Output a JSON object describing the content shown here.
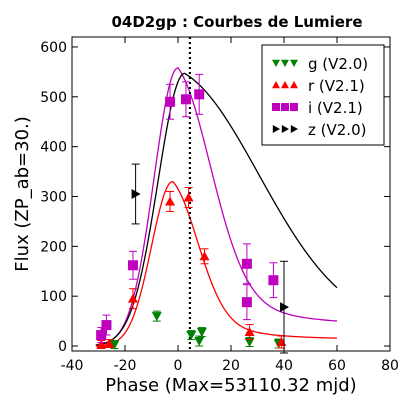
{
  "chart_data": {
    "type": "scatter",
    "title": "04D2gp : Courbes de Lumiere",
    "xlabel": "Phase (Max=53110.32 mjd)",
    "ylabel": "Flux (ZP_ab=30.)",
    "xlim": [
      -40,
      80
    ],
    "ylim": [
      -10,
      620
    ],
    "xticks": [
      "-40",
      "-20",
      "0",
      "20",
      "40",
      "60",
      "80"
    ],
    "yticks": [
      "0",
      "100",
      "200",
      "300",
      "400",
      "500",
      "600"
    ],
    "xtick_values": [
      -40,
      -20,
      0,
      20,
      40,
      60,
      80
    ],
    "ytick_values": [
      0,
      100,
      200,
      300,
      400,
      500,
      600
    ],
    "max_line_x": 4.5,
    "legend_position": "top-right",
    "series": [
      {
        "name": "g (V2.0)",
        "color": "#008000",
        "marker": "triangle-down",
        "points": [
          {
            "x": -24,
            "y": 3,
            "err": 8
          },
          {
            "x": -8,
            "y": 60,
            "err": 10
          },
          {
            "x": 5,
            "y": 22,
            "err": 9
          },
          {
            "x": 8,
            "y": 10,
            "err": 10
          },
          {
            "x": 9,
            "y": 28,
            "err": 9
          },
          {
            "x": 27,
            "y": 8,
            "err": 9
          },
          {
            "x": 38,
            "y": 5,
            "err": 9
          }
        ]
      },
      {
        "name": "r (V2.1)",
        "color": "#ff0000",
        "marker": "triangle-up",
        "points": [
          {
            "x": -29,
            "y": 3,
            "err": 8
          },
          {
            "x": -26,
            "y": 5,
            "err": 8
          },
          {
            "x": -17,
            "y": 95,
            "err": 20
          },
          {
            "x": -3,
            "y": 290,
            "err": 20
          },
          {
            "x": 4,
            "y": 298,
            "err": 20
          },
          {
            "x": 10,
            "y": 180,
            "err": 15
          },
          {
            "x": 27,
            "y": 28,
            "err": 15
          },
          {
            "x": 39,
            "y": 8,
            "err": 12
          }
        ]
      },
      {
        "name": "i (V2.1)",
        "color": "#bf00bf",
        "marker": "square",
        "points": [
          {
            "x": -29,
            "y": 22,
            "err": 15
          },
          {
            "x": -27,
            "y": 42,
            "err": 20
          },
          {
            "x": -17,
            "y": 162,
            "err": 28
          },
          {
            "x": -3,
            "y": 490,
            "err": 35
          },
          {
            "x": 3,
            "y": 495,
            "err": 35
          },
          {
            "x": 8,
            "y": 505,
            "err": 40
          },
          {
            "x": 26,
            "y": 165,
            "err": 40
          },
          {
            "x": 26,
            "y": 88,
            "err": 35
          },
          {
            "x": 36,
            "y": 132,
            "err": 35
          }
        ]
      },
      {
        "name": "z (V2.0)",
        "color": "#000000",
        "marker": "triangle-right",
        "points": [
          {
            "x": -16,
            "y": 305,
            "err": 60
          },
          {
            "x": 40,
            "y": 78,
            "err": 92
          }
        ]
      }
    ],
    "curves": [
      {
        "name": "g-fit",
        "color": "#008000",
        "peak_x": 0,
        "peak_y": 0
      },
      {
        "name": "r-fit",
        "color": "#ff0000",
        "peak_x": -2,
        "peak_y": 330,
        "rise": 8,
        "fall": 10,
        "tail": 14
      },
      {
        "name": "i-fit",
        "color": "#bf00bf",
        "peak_x": 0,
        "peak_y": 558,
        "rise": 9,
        "fall": 13,
        "tail": 42
      },
      {
        "name": "z-fit",
        "color": "#000000",
        "peak_x": 2.5,
        "peak_y": 547,
        "rise": 10,
        "fall": 30,
        "tail": 10
      }
    ]
  }
}
